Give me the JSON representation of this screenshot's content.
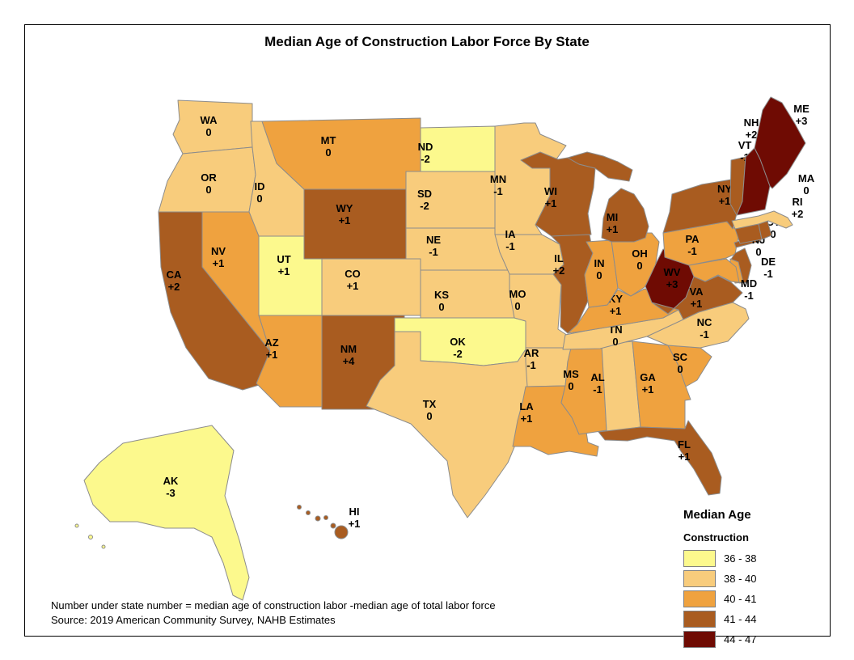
{
  "title": "Median Age of Construction Labor Force By State",
  "legend": {
    "title": "Median Age",
    "subtitle": "Construction",
    "classes": [
      {
        "label": "36 - 38",
        "color": "#FCF98D"
      },
      {
        "label": "38 - 40",
        "color": "#F8CC7C"
      },
      {
        "label": "40 - 41",
        "color": "#EFA23F"
      },
      {
        "label": "41 - 44",
        "color": "#A95C20"
      },
      {
        "label": "44 - 47",
        "color": "#6F0B03"
      }
    ]
  },
  "footnotes": [
    "Number under state number = median age of construction labor -median age of total labor force",
    "Source: 2019 American Community Survey, NAHB Estimates"
  ],
  "map": {
    "border_color": "#8C8C8C",
    "states": [
      {
        "abbr": "WA",
        "value": "0",
        "class": 1
      },
      {
        "abbr": "OR",
        "value": "0",
        "class": 1
      },
      {
        "abbr": "ID",
        "value": "0",
        "class": 1
      },
      {
        "abbr": "MT",
        "value": "0",
        "class": 2
      },
      {
        "abbr": "WY",
        "value": "+1",
        "class": 3
      },
      {
        "abbr": "CA",
        "value": "+2",
        "class": 3
      },
      {
        "abbr": "NV",
        "value": "+1",
        "class": 2
      },
      {
        "abbr": "UT",
        "value": "+1",
        "class": 0
      },
      {
        "abbr": "CO",
        "value": "+1",
        "class": 1
      },
      {
        "abbr": "AZ",
        "value": "+1",
        "class": 2
      },
      {
        "abbr": "NM",
        "value": "+4",
        "class": 3
      },
      {
        "abbr": "ND",
        "value": "-2",
        "class": 0
      },
      {
        "abbr": "SD",
        "value": "-2",
        "class": 1
      },
      {
        "abbr": "NE",
        "value": "-1",
        "class": 1
      },
      {
        "abbr": "KS",
        "value": "0",
        "class": 1
      },
      {
        "abbr": "OK",
        "value": "-2",
        "class": 0
      },
      {
        "abbr": "TX",
        "value": "0",
        "class": 1
      },
      {
        "abbr": "MN",
        "value": "-1",
        "class": 1
      },
      {
        "abbr": "IA",
        "value": "-1",
        "class": 1
      },
      {
        "abbr": "MO",
        "value": "0",
        "class": 1
      },
      {
        "abbr": "AR",
        "value": "-1",
        "class": 1
      },
      {
        "abbr": "LA",
        "value": "+1",
        "class": 2
      },
      {
        "abbr": "MS",
        "value": "0",
        "class": 2
      },
      {
        "abbr": "AL",
        "value": "-1",
        "class": 1
      },
      {
        "abbr": "GA",
        "value": "+1",
        "class": 2
      },
      {
        "abbr": "SC",
        "value": "0",
        "class": 2
      },
      {
        "abbr": "FL",
        "value": "+1",
        "class": 3
      },
      {
        "abbr": "TN",
        "value": "0",
        "class": 1
      },
      {
        "abbr": "KY",
        "value": "+1",
        "class": 2
      },
      {
        "abbr": "WI",
        "value": "+1",
        "class": 3
      },
      {
        "abbr": "IL",
        "value": "+2",
        "class": 3
      },
      {
        "abbr": "IN",
        "value": "0",
        "class": 2
      },
      {
        "abbr": "OH",
        "value": "0",
        "class": 2
      },
      {
        "abbr": "MI",
        "value": "+1",
        "class": 3
      },
      {
        "abbr": "WV",
        "value": "+3",
        "class": 4
      },
      {
        "abbr": "VA",
        "value": "+1",
        "class": 3
      },
      {
        "abbr": "NC",
        "value": "-1",
        "class": 1
      },
      {
        "abbr": "PA",
        "value": "-1",
        "class": 2
      },
      {
        "abbr": "NY",
        "value": "+1",
        "class": 3
      },
      {
        "abbr": "NJ",
        "value": "0",
        "class": 3
      },
      {
        "abbr": "DE",
        "value": "-1",
        "class": 2
      },
      {
        "abbr": "MD",
        "value": "-1",
        "class": 2
      },
      {
        "abbr": "CT",
        "value": "0",
        "class": 3
      },
      {
        "abbr": "RI",
        "value": "+2",
        "class": 3
      },
      {
        "abbr": "MA",
        "value": "0",
        "class": 1
      },
      {
        "abbr": "VT",
        "value": "-1",
        "class": 3
      },
      {
        "abbr": "NH",
        "value": "+2",
        "class": 4
      },
      {
        "abbr": "ME",
        "value": "+3",
        "class": 4
      },
      {
        "abbr": "AK",
        "value": "-3",
        "class": 0
      },
      {
        "abbr": "HI",
        "value": "+1",
        "class": 3
      }
    ]
  }
}
